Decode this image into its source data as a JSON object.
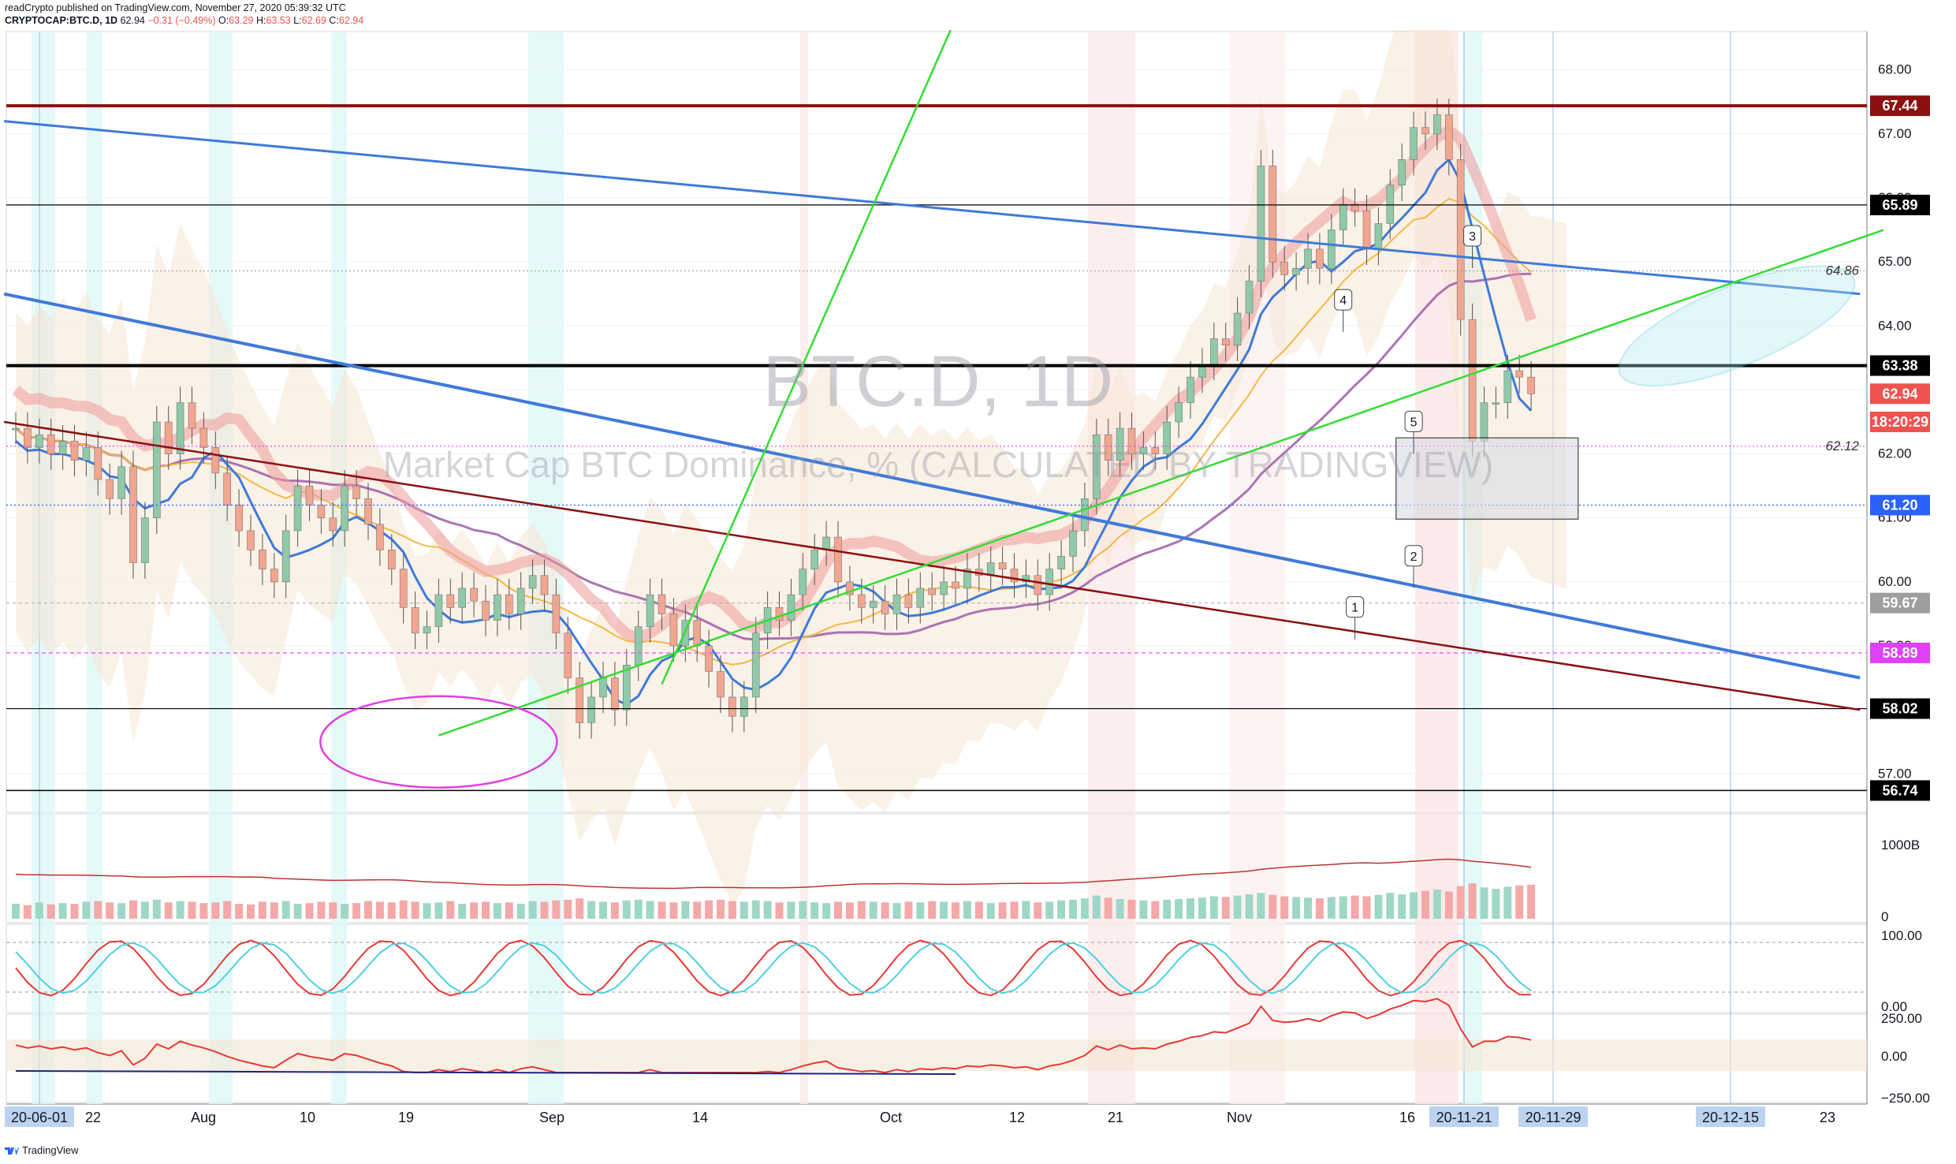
{
  "header": {
    "line1": "readCrypto published on TradingView.com, November 27, 2020 05:39:32 UTC",
    "symbol": "CRYPTOCAP:BTC.D, 1D",
    "last": "62.94",
    "change": "−0.31 (−0.49%)",
    "o_label": "O:",
    "o": "63.29",
    "h_label": "H:",
    "h": "63.53",
    "l_label": "L:",
    "l": "62.69",
    "c_label": "C:",
    "c": "62.94"
  },
  "footer": {
    "brand": "TradingView"
  },
  "colors": {
    "blue_line": "#3f7ad9",
    "dark_red": "#8b1010",
    "green_line": "#33dd33",
    "candle_up": "#26a69a",
    "candle_down": "#ef5350",
    "magenta": "#e040e0",
    "cyan_ellipse": "#4cc9d9",
    "purple_ma": "#9c5da8"
  },
  "chart_data": {
    "type": "candlestick",
    "watermark_symbol": "BTC.D, 1D",
    "watermark_name": "Market Cap BTC Dominance, % (CALCULATED BY TRADINGVIEW)",
    "ylim": [
      56.4,
      68.6
    ],
    "y_ticks": [
      "68.00",
      "67.00",
      "66.00",
      "65.00",
      "64.00",
      "63.00",
      "62.00",
      "61.00",
      "60.00",
      "59.00",
      "58.00",
      "57.00"
    ],
    "price_labels": [
      {
        "value": 67.44,
        "text": "67.44",
        "bg": "#8b1010",
        "fg": "#ffffff"
      },
      {
        "value": 65.89,
        "text": "65.89",
        "bg": "#000000",
        "fg": "#ffffff"
      },
      {
        "value": 63.38,
        "text": "63.38",
        "bg": "#000000",
        "fg": "#ffffff"
      },
      {
        "value": 62.94,
        "text": "62.94",
        "bg": "#ef5350",
        "fg": "#ffffff"
      },
      {
        "value": 62.5,
        "text": "18:20:29",
        "bg": "#ef5350",
        "fg": "#ffffff"
      },
      {
        "value": 61.2,
        "text": "61.20",
        "bg": "#2962ff",
        "fg": "#ffffff"
      },
      {
        "value": 59.67,
        "text": "59.67",
        "bg": "#9e9e9e",
        "fg": "#ffffff"
      },
      {
        "value": 58.89,
        "text": "58.89",
        "bg": "#e040fb",
        "fg": "#ffffff"
      },
      {
        "value": 58.02,
        "text": "58.02",
        "bg": "#000000",
        "fg": "#ffffff"
      },
      {
        "value": 56.74,
        "text": "56.74",
        "bg": "#000000",
        "fg": "#ffffff"
      }
    ],
    "inline_labels": [
      {
        "value": 64.86,
        "text": "64.86"
      },
      {
        "value": 62.12,
        "text": "62.12"
      }
    ],
    "wave_labels": [
      "1",
      "2",
      "3",
      "4",
      "5"
    ],
    "x_labels": [
      {
        "text": "20-06-01",
        "boxed": true
      },
      {
        "text": "22"
      },
      {
        "text": "Aug"
      },
      {
        "text": "10"
      },
      {
        "text": "19"
      },
      {
        "text": "Sep"
      },
      {
        "text": "14"
      },
      {
        "text": "Oct"
      },
      {
        "text": "12"
      },
      {
        "text": "21"
      },
      {
        "text": "Nov"
      },
      {
        "text": "16"
      },
      {
        "text": "20-11-21",
        "boxed": true
      },
      {
        "text": "20-11-29",
        "boxed": true
      },
      {
        "text": "20-12-15",
        "boxed": true
      },
      {
        "text": "23"
      }
    ],
    "volume_label": "1000B",
    "volume_zero": "0",
    "osc1_ticks": [
      "100.00",
      "0.00"
    ],
    "osc2_ticks": [
      "250.00",
      "0.00",
      "−250.00"
    ],
    "closes": [
      62.4,
      62.1,
      62.3,
      62.0,
      62.2,
      61.9,
      62.1,
      61.6,
      61.3,
      61.8,
      60.3,
      61.0,
      62.5,
      62.0,
      62.8,
      62.4,
      62.1,
      61.7,
      61.2,
      60.8,
      60.5,
      60.2,
      60.0,
      60.8,
      61.5,
      61.2,
      61.0,
      60.8,
      61.5,
      61.3,
      60.9,
      60.5,
      60.2,
      59.6,
      59.2,
      59.3,
      59.8,
      59.6,
      59.9,
      59.7,
      59.4,
      59.8,
      59.5,
      59.9,
      60.1,
      59.8,
      59.2,
      58.5,
      57.8,
      58.2,
      58.5,
      58.0,
      58.7,
      59.3,
      59.8,
      59.5,
      59.0,
      59.4,
      59.0,
      58.6,
      58.2,
      57.9,
      58.2,
      59.2,
      59.6,
      59.4,
      59.8,
      60.2,
      60.5,
      60.7,
      60.0,
      59.8,
      59.6,
      59.7,
      59.5,
      59.8,
      59.6,
      59.9,
      59.8,
      60.0,
      59.9,
      60.2,
      60.1,
      60.3,
      60.2,
      60.0,
      60.1,
      59.8,
      60.2,
      60.4,
      60.8,
      61.3,
      62.3,
      61.9,
      62.4,
      62.0,
      62.1,
      62.0,
      62.5,
      62.8,
      63.2,
      63.4,
      63.8,
      63.7,
      64.2,
      64.7,
      66.5,
      65.0,
      64.8,
      64.9,
      65.2,
      64.9,
      65.5,
      65.9,
      65.8,
      65.2,
      65.6,
      66.2,
      66.6,
      67.1,
      67.0,
      67.3,
      66.6,
      64.1,
      62.2,
      62.8,
      62.8,
      63.3,
      63.2,
      62.94
    ],
    "volume": [
      22,
      20,
      24,
      21,
      23,
      22,
      25,
      26,
      24,
      23,
      27,
      25,
      28,
      24,
      26,
      25,
      23,
      24,
      26,
      22,
      21,
      25,
      24,
      26,
      22,
      23,
      25,
      24,
      22,
      23,
      26,
      25,
      24,
      27,
      25,
      23,
      24,
      26,
      22,
      24,
      25,
      23,
      24,
      22,
      26,
      25,
      27,
      28,
      30,
      26,
      25,
      24,
      27,
      28,
      26,
      25,
      24,
      26,
      25,
      27,
      28,
      26,
      25,
      27,
      26,
      24,
      25,
      26,
      24,
      23,
      25,
      24,
      26,
      25,
      24,
      23,
      25,
      24,
      26,
      25,
      24,
      26,
      25,
      23,
      24,
      25,
      26,
      24,
      25,
      27,
      28,
      30,
      34,
      31,
      29,
      28,
      27,
      26,
      28,
      29,
      30,
      31,
      33,
      32,
      34,
      36,
      38,
      35,
      33,
      32,
      31,
      30,
      32,
      33,
      34,
      33,
      35,
      38,
      36,
      39,
      41,
      43,
      40,
      48,
      52,
      46,
      44,
      47,
      49,
      50
    ]
  }
}
